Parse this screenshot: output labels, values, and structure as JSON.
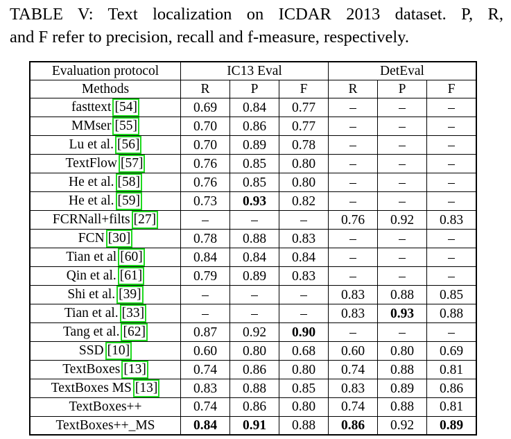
{
  "caption": {
    "line1": "TABLE V: Text localization on ICDAR 2013 dataset. P, R,",
    "line2": "and F refer to precision, recall and f-measure, respectively."
  },
  "header": {
    "protocol_label": "Evaluation protocol",
    "group1": "IC13 Eval",
    "group2": "DetEval",
    "methods_label": "Methods",
    "cols": [
      "R",
      "P",
      "F",
      "R",
      "P",
      "F"
    ]
  },
  "rows": [
    {
      "method": "fasttext",
      "ref": "54",
      "values": [
        "0.69",
        "0.84",
        "0.77",
        "–",
        "–",
        "–"
      ],
      "bold": []
    },
    {
      "method": "MMser",
      "ref": "55",
      "values": [
        "0.70",
        "0.86",
        "0.77",
        "–",
        "–",
        "–"
      ],
      "bold": []
    },
    {
      "method": "Lu et al.",
      "ref": "56",
      "values": [
        "0.70",
        "0.89",
        "0.78",
        "–",
        "–",
        "–"
      ],
      "bold": []
    },
    {
      "method": "TextFlow",
      "ref": "57",
      "values": [
        "0.76",
        "0.85",
        "0.80",
        "–",
        "–",
        "–"
      ],
      "bold": []
    },
    {
      "method": "He et al.",
      "ref": "58",
      "values": [
        "0.76",
        "0.85",
        "0.80",
        "–",
        "–",
        "–"
      ],
      "bold": []
    },
    {
      "method": "He et al.",
      "ref": "59",
      "values": [
        "0.73",
        "0.93",
        "0.82",
        "–",
        "–",
        "–"
      ],
      "bold": [
        1
      ]
    },
    {
      "method": "FCRNall+filts",
      "ref": "27",
      "values": [
        "–",
        "–",
        "–",
        "0.76",
        "0.92",
        "0.83"
      ],
      "bold": []
    },
    {
      "method": "FCN",
      "ref": "30",
      "values": [
        "0.78",
        "0.88",
        "0.83",
        "–",
        "–",
        "–"
      ],
      "bold": []
    },
    {
      "method": "Tian et al",
      "ref": "60",
      "values": [
        "0.84",
        "0.84",
        "0.84",
        "–",
        "–",
        "–"
      ],
      "bold": []
    },
    {
      "method": "Qin et al.",
      "ref": "61",
      "values": [
        "0.79",
        "0.89",
        "0.83",
        "–",
        "–",
        "–"
      ],
      "bold": []
    },
    {
      "method": "Shi et al.",
      "ref": "39",
      "values": [
        "–",
        "–",
        "–",
        "0.83",
        "0.88",
        "0.85"
      ],
      "bold": []
    },
    {
      "method": "Tian et al.",
      "ref": "33",
      "values": [
        "–",
        "–",
        "–",
        "0.83",
        "0.93",
        "0.88"
      ],
      "bold": [
        4
      ]
    },
    {
      "method": "Tang et al.",
      "ref": "62",
      "values": [
        "0.87",
        "0.92",
        "0.90",
        "–",
        "–",
        "–"
      ],
      "bold": [
        2
      ]
    },
    {
      "method": "SSD",
      "ref": "10",
      "values": [
        "0.60",
        "0.80",
        "0.68",
        "0.60",
        "0.80",
        "0.69"
      ],
      "bold": []
    },
    {
      "method": "TextBoxes",
      "ref": "13",
      "values": [
        "0.74",
        "0.86",
        "0.80",
        "0.74",
        "0.88",
        "0.81"
      ],
      "bold": []
    },
    {
      "method": "TextBoxes MS",
      "ref": "13",
      "values": [
        "0.83",
        "0.88",
        "0.85",
        "0.83",
        "0.89",
        "0.86"
      ],
      "bold": []
    },
    {
      "method": "TextBoxes++",
      "ref": "",
      "values": [
        "0.74",
        "0.86",
        "0.80",
        "0.74",
        "0.88",
        "0.81"
      ],
      "bold": []
    },
    {
      "method": "TextBoxes++_MS",
      "ref": "",
      "values": [
        "0.84",
        "0.91",
        "0.88",
        "0.86",
        "0.92",
        "0.89"
      ],
      "bold": [
        0,
        1,
        3,
        5
      ]
    }
  ]
}
